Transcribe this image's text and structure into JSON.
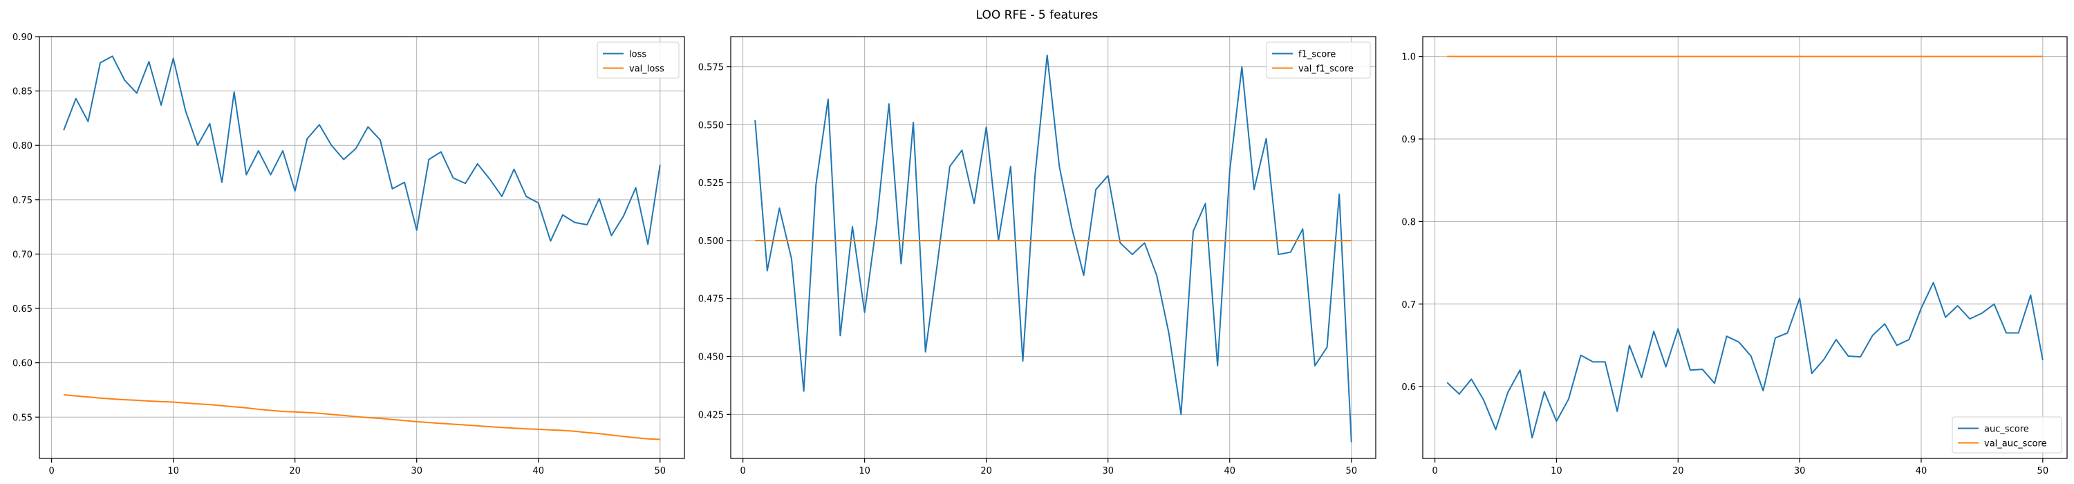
{
  "figure": {
    "suptitle": "LOO RFE - 5 features"
  },
  "chart_data": [
    {
      "type": "line",
      "grid": true,
      "legend": "upper-right",
      "xlim": [
        -1,
        52
      ],
      "ylim": [
        0.512,
        0.9
      ],
      "xticks": [
        0,
        10,
        20,
        30,
        40,
        50
      ],
      "yticks": [
        0.55,
        0.6,
        0.65,
        0.7,
        0.75,
        0.8,
        0.85,
        0.9
      ],
      "ytick_decimals": 2,
      "series": [
        {
          "name": "loss",
          "color": "#1f77b4",
          "values": [
            0.814,
            0.843,
            0.822,
            0.876,
            0.882,
            0.86,
            0.848,
            0.877,
            0.837,
            0.88,
            0.832,
            0.8,
            0.82,
            0.766,
            0.849,
            0.773,
            0.795,
            0.773,
            0.795,
            0.758,
            0.806,
            0.819,
            0.8,
            0.787,
            0.797,
            0.817,
            0.805,
            0.76,
            0.766,
            0.722,
            0.787,
            0.794,
            0.77,
            0.765,
            0.783,
            0.769,
            0.753,
            0.778,
            0.753,
            0.747,
            0.712,
            0.736,
            0.729,
            0.727,
            0.751,
            0.717,
            0.735,
            0.761,
            0.709,
            0.782
          ]
        },
        {
          "name": "val_loss",
          "color": "#ff7f0e",
          "values": [
            0.5705,
            0.5695,
            0.5685,
            0.5675,
            0.5667,
            0.566,
            0.5655,
            0.5648,
            0.5642,
            0.5638,
            0.563,
            0.5622,
            0.5615,
            0.5605,
            0.5595,
            0.5585,
            0.5572,
            0.5562,
            0.5552,
            0.5548,
            0.5542,
            0.5535,
            0.5525,
            0.5515,
            0.5505,
            0.5495,
            0.5488,
            0.5478,
            0.5468,
            0.5458,
            0.545,
            0.5442,
            0.5435,
            0.5428,
            0.542,
            0.5412,
            0.5405,
            0.5398,
            0.5392,
            0.5388,
            0.5382,
            0.5378,
            0.537,
            0.5358,
            0.5348,
            0.5335,
            0.5322,
            0.531,
            0.53,
            0.5295
          ]
        }
      ]
    },
    {
      "type": "line",
      "grid": true,
      "legend": "upper-right",
      "xlim": [
        -1,
        52
      ],
      "ylim": [
        0.406,
        0.588
      ],
      "xticks": [
        0,
        10,
        20,
        30,
        40,
        50
      ],
      "yticks": [
        0.425,
        0.45,
        0.475,
        0.5,
        0.525,
        0.55,
        0.575
      ],
      "ytick_decimals": 3,
      "series": [
        {
          "name": "f1_score",
          "color": "#1f77b4",
          "values": [
            0.552,
            0.487,
            0.514,
            0.492,
            0.435,
            0.524,
            0.561,
            0.459,
            0.506,
            0.469,
            0.508,
            0.559,
            0.49,
            0.551,
            0.452,
            0.491,
            0.532,
            0.539,
            0.516,
            0.549,
            0.5,
            0.532,
            0.448,
            0.528,
            0.58,
            0.532,
            0.506,
            0.485,
            0.522,
            0.528,
            0.499,
            0.494,
            0.499,
            0.485,
            0.46,
            0.425,
            0.504,
            0.516,
            0.446,
            0.53,
            0.575,
            0.522,
            0.544,
            0.494,
            0.495,
            0.505,
            0.446,
            0.454,
            0.52,
            0.413
          ]
        },
        {
          "name": "val_f1_score",
          "color": "#ff7f0e",
          "values": [
            0.5,
            0.5,
            0.5,
            0.5,
            0.5,
            0.5,
            0.5,
            0.5,
            0.5,
            0.5,
            0.5,
            0.5,
            0.5,
            0.5,
            0.5,
            0.5,
            0.5,
            0.5,
            0.5,
            0.5,
            0.5,
            0.5,
            0.5,
            0.5,
            0.5,
            0.5,
            0.5,
            0.5,
            0.5,
            0.5,
            0.5,
            0.5,
            0.5,
            0.5,
            0.5,
            0.5,
            0.5,
            0.5,
            0.5,
            0.5,
            0.5,
            0.5,
            0.5,
            0.5,
            0.5,
            0.5,
            0.5,
            0.5,
            0.5,
            0.5
          ]
        }
      ]
    },
    {
      "type": "line",
      "grid": true,
      "legend": "lower-right",
      "xlim": [
        -1,
        52
      ],
      "ylim": [
        0.513,
        1.024
      ],
      "xticks": [
        0,
        10,
        20,
        30,
        40,
        50
      ],
      "yticks": [
        0.6,
        0.7,
        0.8,
        0.9,
        1.0
      ],
      "ytick_decimals": 1,
      "series": [
        {
          "name": "auc_score",
          "color": "#1f77b4",
          "values": [
            0.605,
            0.591,
            0.609,
            0.584,
            0.548,
            0.593,
            0.62,
            0.538,
            0.594,
            0.558,
            0.585,
            0.638,
            0.63,
            0.63,
            0.57,
            0.65,
            0.611,
            0.667,
            0.624,
            0.67,
            0.62,
            0.621,
            0.604,
            0.661,
            0.654,
            0.637,
            0.595,
            0.659,
            0.665,
            0.707,
            0.616,
            0.633,
            0.657,
            0.637,
            0.636,
            0.662,
            0.676,
            0.65,
            0.657,
            0.695,
            0.726,
            0.684,
            0.698,
            0.682,
            0.689,
            0.7,
            0.665,
            0.665,
            0.711,
            0.632
          ]
        },
        {
          "name": "val_auc_score",
          "color": "#ff7f0e",
          "values": [
            1.0,
            1.0,
            1.0,
            1.0,
            1.0,
            1.0,
            1.0,
            1.0,
            1.0,
            1.0,
            1.0,
            1.0,
            1.0,
            1.0,
            1.0,
            1.0,
            1.0,
            1.0,
            1.0,
            1.0,
            1.0,
            1.0,
            1.0,
            1.0,
            1.0,
            1.0,
            1.0,
            1.0,
            1.0,
            1.0,
            1.0,
            1.0,
            1.0,
            1.0,
            1.0,
            1.0,
            1.0,
            1.0,
            1.0,
            1.0,
            1.0,
            1.0,
            1.0,
            1.0,
            1.0,
            1.0,
            1.0,
            1.0,
            1.0,
            1.0
          ]
        }
      ]
    }
  ]
}
